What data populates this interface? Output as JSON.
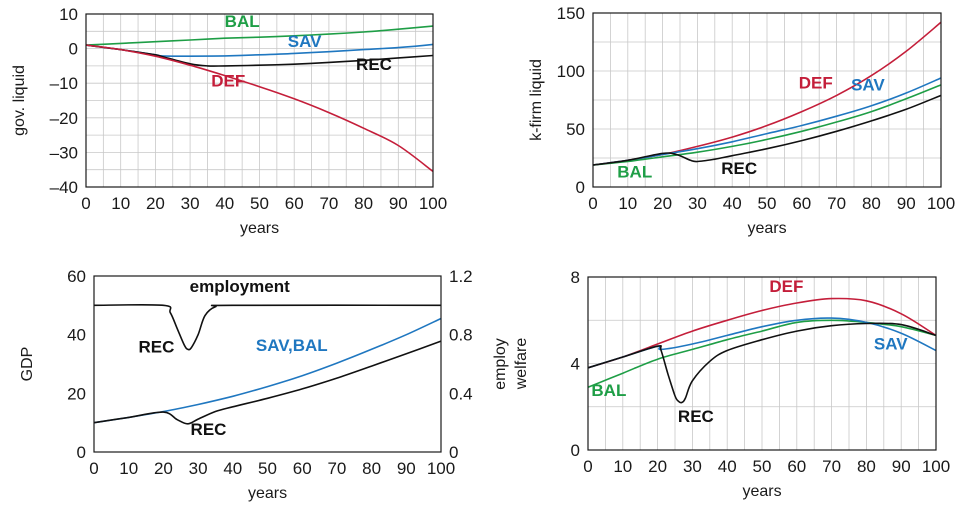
{
  "colors": {
    "DEF": "#c41e3a",
    "SAV": "#1f77c0",
    "BAL": "#1e9e46",
    "REC": "#111111"
  },
  "chart_data": [
    {
      "type": "line",
      "xlabel": "years",
      "ylabel": "gov. liquid",
      "xlim": [
        0,
        100
      ],
      "ylim": [
        -40,
        10
      ],
      "xticks": [
        "0",
        "10",
        "20",
        "30",
        "40",
        "50",
        "60",
        "70",
        "80",
        "90",
        "100"
      ],
      "yticks": [
        {
          "v": 10,
          "label": "10"
        },
        {
          "v": 0,
          "label": "0"
        },
        {
          "v": -10,
          "label": "–10"
        },
        {
          "v": -20,
          "label": "–20"
        },
        {
          "v": -30,
          "label": "–30"
        },
        {
          "v": -40,
          "label": "–40"
        }
      ],
      "grid": true,
      "series": [
        {
          "name": "BAL",
          "x": [
            0,
            10,
            20,
            30,
            40,
            50,
            60,
            70,
            80,
            90,
            100
          ],
          "y": [
            1,
            1.5,
            2,
            2.5,
            3,
            3.3,
            3.7,
            4.2,
            4.8,
            5.6,
            6.5
          ]
        },
        {
          "name": "SAV",
          "x": [
            0,
            10,
            20,
            22,
            30,
            40,
            50,
            60,
            70,
            80,
            90,
            100
          ],
          "y": [
            1,
            -0.3,
            -1.8,
            -2.1,
            -2.2,
            -2.1,
            -1.8,
            -1.4,
            -0.9,
            -0.3,
            0.3,
            1.2
          ]
        },
        {
          "name": "REC",
          "x": [
            0,
            10,
            20,
            22,
            30,
            35,
            40,
            50,
            60,
            70,
            80,
            90,
            100
          ],
          "y": [
            1,
            -0.3,
            -1.8,
            -2.3,
            -4.4,
            -5,
            -5,
            -4.8,
            -4.5,
            -4,
            -3.4,
            -2.7,
            -2
          ]
        },
        {
          "name": "DEF",
          "x": [
            0,
            10,
            20,
            30,
            40,
            50,
            60,
            70,
            80,
            90,
            100
          ],
          "y": [
            1,
            -0.3,
            -2.2,
            -4.8,
            -7.8,
            -11,
            -14.5,
            -18.5,
            -23,
            -28,
            -35.5
          ]
        }
      ],
      "labels": [
        {
          "text": "BAL",
          "series": "BAL",
          "x": 45,
          "y": 6.3
        },
        {
          "text": "SAV",
          "series": "SAV",
          "x": 63,
          "y": 0.5
        },
        {
          "text": "REC",
          "series": "REC",
          "x": 83,
          "y": -6.2
        },
        {
          "text": "DEF",
          "series": "DEF",
          "x": 41,
          "y": -11
        }
      ]
    },
    {
      "type": "line",
      "xlabel": "years",
      "ylabel": "k-firm liquid",
      "xlim": [
        0,
        100
      ],
      "ylim": [
        0,
        150
      ],
      "xticks": [
        "0",
        "10",
        "20",
        "30",
        "40",
        "50",
        "60",
        "70",
        "80",
        "90",
        "100"
      ],
      "yticks": [
        {
          "v": 150,
          "label": "150"
        },
        {
          "v": 100,
          "label": "100"
        },
        {
          "v": 50,
          "label": "50"
        },
        {
          "v": 0,
          "label": "0"
        }
      ],
      "grid": true,
      "series": [
        {
          "name": "DEF",
          "x": [
            0,
            10,
            20,
            30,
            40,
            50,
            60,
            70,
            80,
            90,
            100
          ],
          "y": [
            19,
            23,
            28,
            35,
            43,
            53,
            65,
            79,
            96,
            117,
            142
          ]
        },
        {
          "name": "SAV",
          "x": [
            0,
            10,
            20,
            30,
            40,
            50,
            60,
            70,
            80,
            90,
            100
          ],
          "y": [
            19,
            23,
            28,
            33,
            39,
            46,
            53,
            61,
            70,
            81,
            94
          ]
        },
        {
          "name": "BAL",
          "x": [
            0,
            10,
            20,
            30,
            40,
            50,
            60,
            70,
            80,
            90,
            100
          ],
          "y": [
            19,
            22,
            26,
            30,
            35,
            41,
            48,
            56,
            65,
            76,
            88
          ]
        },
        {
          "name": "REC",
          "x": [
            0,
            10,
            20,
            24,
            28,
            30,
            35,
            40,
            50,
            60,
            70,
            80,
            90,
            100
          ],
          "y": [
            19,
            23,
            29,
            28,
            23,
            22,
            24,
            27,
            33,
            40,
            48,
            57,
            67,
            79
          ]
        }
      ],
      "labels": [
        {
          "text": "DEF",
          "series": "DEF",
          "x": 64,
          "y": 85
        },
        {
          "text": "SAV",
          "series": "SAV",
          "x": 79,
          "y": 83
        },
        {
          "text": "BAL",
          "series": "BAL",
          "x": 12,
          "y": 8
        },
        {
          "text": "REC",
          "series": "REC",
          "x": 42,
          "y": 11
        }
      ]
    },
    {
      "type": "line",
      "xlabel": "years",
      "ylabel": "GDP",
      "ylabel2": "employ",
      "xlim": [
        0,
        100
      ],
      "ylim": [
        0,
        60
      ],
      "ylim2": [
        0,
        1.2
      ],
      "xticks": [
        "0",
        "10",
        "20",
        "30",
        "40",
        "50",
        "60",
        "70",
        "80",
        "90",
        "100"
      ],
      "yticks": [
        {
          "v": 60,
          "label": "60"
        },
        {
          "v": 40,
          "label": "40"
        },
        {
          "v": 20,
          "label": "20"
        },
        {
          "v": 0,
          "label": "0"
        }
      ],
      "yticks2": [
        {
          "v": 1.2,
          "label": "1.2"
        },
        {
          "v": 0.8,
          "label": "0.8"
        },
        {
          "v": 0.4,
          "label": "0.4"
        },
        {
          "v": 0,
          "label": "0"
        }
      ],
      "grid": false,
      "series": [
        {
          "name": "employment",
          "axis": "right",
          "x": [
            0,
            20,
            22,
            24,
            26,
            27,
            28,
            30,
            32,
            35,
            40,
            100
          ],
          "y": [
            1,
            1,
            0.95,
            0.84,
            0.73,
            0.7,
            0.71,
            0.8,
            0.93,
            0.99,
            1,
            1
          ]
        },
        {
          "name": "SAV,BAL",
          "x": [
            0,
            10,
            20,
            30,
            40,
            50,
            60,
            70,
            80,
            90,
            100
          ],
          "y": [
            10,
            11.8,
            13.8,
            16.2,
            19,
            22.3,
            26,
            30.3,
            35,
            40,
            45.5
          ]
        },
        {
          "name": "REC",
          "x": [
            0,
            10,
            20,
            24,
            27,
            30,
            35,
            40,
            50,
            60,
            70,
            80,
            90,
            100
          ],
          "y": [
            10,
            11.8,
            13.6,
            11,
            9.6,
            11.2,
            13.8,
            15.4,
            18.3,
            21.5,
            25.2,
            29.3,
            33.5,
            37.8
          ]
        }
      ],
      "labels": [
        {
          "text": "employment",
          "series": "REC",
          "x": 42,
          "y": 54.5
        },
        {
          "text": "REC",
          "series": "REC",
          "x": 18,
          "y": 34
        },
        {
          "text": "SAV,BAL",
          "series": "SAV",
          "x": 57,
          "y": 34.5
        },
        {
          "text": "REC",
          "series": "REC",
          "x": 33,
          "y": 5.8
        }
      ]
    },
    {
      "type": "line",
      "xlabel": "years",
      "ylabel": "welfare",
      "xlim": [
        0,
        100
      ],
      "ylim": [
        0,
        8
      ],
      "xticks": [
        "0",
        "10",
        "20",
        "30",
        "40",
        "50",
        "60",
        "70",
        "80",
        "90",
        "100"
      ],
      "yticks": [
        {
          "v": 8,
          "label": "8"
        },
        {
          "v": 4,
          "label": "4"
        },
        {
          "v": 0,
          "label": "0"
        }
      ],
      "grid": true,
      "series": [
        {
          "name": "BAL",
          "x": [
            0,
            10,
            20,
            30,
            40,
            50,
            60,
            70,
            80,
            90,
            100
          ],
          "y": [
            2.9,
            3.55,
            4.2,
            4.65,
            5.1,
            5.5,
            5.9,
            6,
            5.9,
            5.7,
            5.3
          ]
        },
        {
          "name": "DEF",
          "x": [
            0,
            10,
            20,
            30,
            40,
            50,
            60,
            70,
            80,
            90,
            100
          ],
          "y": [
            3.8,
            4.3,
            4.9,
            5.5,
            6,
            6.45,
            6.8,
            7,
            6.9,
            6.3,
            5.3
          ]
        },
        {
          "name": "SAV",
          "x": [
            0,
            10,
            20,
            21,
            30,
            40,
            50,
            60,
            70,
            80,
            90,
            100
          ],
          "y": [
            3.8,
            4.3,
            4.8,
            4.65,
            4.9,
            5.3,
            5.7,
            6,
            6.1,
            5.9,
            5.4,
            4.6
          ]
        },
        {
          "name": "REC",
          "x": [
            0,
            10,
            20,
            21,
            23,
            25,
            26,
            27,
            28,
            30,
            35,
            40,
            50,
            60,
            70,
            80,
            90,
            100
          ],
          "y": [
            3.8,
            4.3,
            4.8,
            4.6,
            3.5,
            2.5,
            2.25,
            2.2,
            2.4,
            3.2,
            4.1,
            4.6,
            5.1,
            5.5,
            5.75,
            5.85,
            5.8,
            5.3
          ]
        }
      ],
      "labels": [
        {
          "text": "DEF",
          "series": "DEF",
          "x": 57,
          "y": 7.3
        },
        {
          "text": "SAV",
          "series": "SAV",
          "x": 87,
          "y": 4.65
        },
        {
          "text": "BAL",
          "series": "BAL",
          "x": 6,
          "y": 2.5
        },
        {
          "text": "REC",
          "series": "REC",
          "x": 31,
          "y": 1.3
        }
      ]
    }
  ]
}
